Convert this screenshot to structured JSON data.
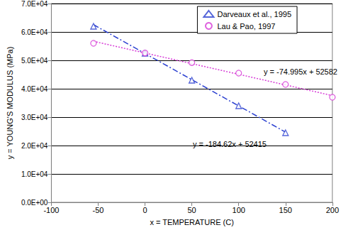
{
  "chart_data": {
    "type": "scatter",
    "xlabel": "x = TEMPERATURE (C)",
    "ylabel": "y = YOUNG'S MODULUS (MPa)",
    "xlim": [
      -100,
      200
    ],
    "xticks": [
      -100,
      -50,
      0,
      50,
      100,
      150,
      200
    ],
    "ylim": [
      0,
      70000
    ],
    "yticks": [
      {
        "value": 0,
        "label": "0.0E+00"
      },
      {
        "value": 10000,
        "label": "1.0E+04"
      },
      {
        "value": 20000,
        "label": "2.0E+04"
      },
      {
        "value": 30000,
        "label": "3.0E+04"
      },
      {
        "value": 40000,
        "label": "4.0E+04"
      },
      {
        "value": 50000,
        "label": "5.0E+04"
      },
      {
        "value": 60000,
        "label": "6.0E+04"
      },
      {
        "value": 70000,
        "label": "7.0E+04"
      }
    ],
    "grid": true,
    "legend": "upper right",
    "series": [
      {
        "name": "Darveaux et al., 1995",
        "color": "#2a3fd0",
        "marker": "triangle",
        "line_style": "dashdot",
        "x": [
          -55,
          0,
          50,
          100,
          150
        ],
        "values": [
          62000,
          52500,
          43000,
          34000,
          24500
        ],
        "trendline": {
          "slope": -184.62,
          "intercept": 52415,
          "label": "y = -184.62x + 52415"
        }
      },
      {
        "name": "Lau & Pao, 1997",
        "color": "#d63ad6",
        "marker": "circle",
        "line_style": "dotted",
        "x": [
          -55,
          0,
          50,
          100,
          150,
          200
        ],
        "values": [
          56000,
          52600,
          49200,
          45500,
          41500,
          37000
        ],
        "trendline": {
          "slope": -74.995,
          "intercept": 52582,
          "label": "y = -74.995x + 52582"
        }
      }
    ]
  }
}
